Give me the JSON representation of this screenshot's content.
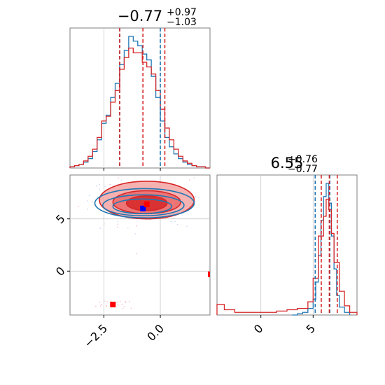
{
  "colors": {
    "blue": "#1f77b4",
    "red": "#d62728",
    "red_fill_light": "#f4a3a3",
    "marker_blue": "#0000ff",
    "marker_red": "#ff0000",
    "grid": "#c8c8c8",
    "axes": "#808080"
  },
  "chart_data": [
    {
      "type": "histogram",
      "panel": "top-left",
      "title": {
        "value": "−0.77",
        "sup": "+0.97",
        "sub": "−1.03"
      },
      "xlim": [
        -4.0,
        2.2
      ],
      "grid": true,
      "reference_line_x": 0.0,
      "series": [
        {
          "name": "",
          "color": "#1f77b4",
          "bin_edges": [
            -4.0,
            -3.8,
            -3.6,
            -3.4,
            -3.2,
            -3.0,
            -2.8,
            -2.6,
            -2.4,
            -2.2,
            -2.0,
            -1.8,
            -1.6,
            -1.4,
            -1.2,
            -1.0,
            -0.8,
            -0.6,
            -0.4,
            -0.2,
            0.0,
            0.2,
            0.4,
            0.6,
            0.8,
            1.0,
            1.2,
            1.4,
            1.6,
            1.8,
            2.0,
            2.2
          ],
          "counts": [
            1,
            2,
            3,
            5,
            8,
            14,
            24,
            38,
            45,
            60,
            72,
            88,
            100,
            112,
            108,
            104,
            97,
            92,
            78,
            60,
            40,
            26,
            18,
            12,
            8,
            5,
            3,
            2,
            1,
            1,
            0
          ],
          "quantile_lines": [
            -1.8,
            0.0
          ]
        },
        {
          "name": "",
          "color": "#d62728",
          "bin_edges": [
            -4.0,
            -3.8,
            -3.6,
            -3.4,
            -3.2,
            -3.0,
            -2.8,
            -2.6,
            -2.4,
            -2.2,
            -2.0,
            -1.8,
            -1.6,
            -1.4,
            -1.2,
            -1.0,
            -0.8,
            -0.6,
            -0.4,
            -0.2,
            0.0,
            0.2,
            0.4,
            0.6,
            0.8,
            1.0,
            1.2,
            1.4,
            1.6,
            1.8,
            2.0,
            2.2
          ],
          "counts": [
            1,
            2,
            3,
            6,
            10,
            16,
            26,
            40,
            44,
            56,
            66,
            84,
            94,
            102,
            98,
            98,
            90,
            86,
            80,
            66,
            50,
            34,
            24,
            16,
            10,
            6,
            4,
            2,
            1,
            1,
            0
          ],
          "quantile_lines": [
            -1.8,
            -0.77,
            0.2
          ]
        }
      ]
    },
    {
      "type": "scatter",
      "panel": "bottom-left",
      "xlim": [
        -4.0,
        2.2
      ],
      "ylim": [
        -4.2,
        9.2
      ],
      "xticks": [
        -2.5,
        0.0
      ],
      "xtick_labels": [
        "−2.5",
        "0.0"
      ],
      "yticks": [
        0,
        5
      ],
      "ytick_labels": [
        "0",
        "5"
      ],
      "grid": true,
      "markers": [
        {
          "color": "#0000ff",
          "x": -0.77,
          "y": 6.0
        },
        {
          "color": "#ff0000",
          "x": -0.6,
          "y": 6.4
        },
        {
          "color": "#ff0000",
          "x": -2.1,
          "y": -3.2
        },
        {
          "color": "#ff0000",
          "x": 2.2,
          "y": -0.3
        }
      ],
      "contours": [
        {
          "color": "#1f77b4",
          "cx": -0.7,
          "cy": 6.5,
          "rx": 2.2,
          "ry": 1.4,
          "fill": false
        },
        {
          "color": "#1f77b4",
          "cx": -0.75,
          "cy": 6.3,
          "rx": 1.8,
          "ry": 1.0,
          "fill": false
        },
        {
          "color": "#1f77b4",
          "cx": -0.8,
          "cy": 6.2,
          "rx": 1.3,
          "ry": 0.7,
          "fill": false
        },
        {
          "color": "#d62728",
          "cx": -0.6,
          "cy": 6.8,
          "rx": 2.1,
          "ry": 1.8,
          "fill": true
        },
        {
          "color": "#d62728",
          "cx": -0.6,
          "cy": 6.6,
          "rx": 1.5,
          "ry": 1.1,
          "fill": true
        },
        {
          "color": "#d62728",
          "cx": -0.6,
          "cy": 6.5,
          "rx": 0.9,
          "ry": 0.7,
          "fill": true
        }
      ]
    },
    {
      "type": "histogram",
      "panel": "bottom-right",
      "title": {
        "value": "6.55",
        "sup": "+0.76",
        "sub": "−0.77"
      },
      "xlim": [
        -4.2,
        9.2
      ],
      "xticks": [
        0,
        5
      ],
      "xtick_labels": [
        "0",
        "5"
      ],
      "grid": true,
      "series": [
        {
          "name": "",
          "color": "#1f77b4",
          "bin_edges": [
            3.0,
            3.5,
            4.0,
            4.5,
            5.0,
            5.25,
            5.5,
            5.75,
            6.0,
            6.25,
            6.5,
            6.75,
            7.0,
            7.25,
            7.5,
            8.0,
            8.5
          ],
          "counts": [
            0,
            1,
            2,
            5,
            12,
            25,
            45,
            72,
            90,
            100,
            85,
            60,
            35,
            15,
            6,
            2
          ],
          "quantile_lines": [
            5.2,
            6.6
          ]
        },
        {
          "name": "",
          "color": "#d62728",
          "bin_edges": [
            -4.2,
            -3.5,
            -2.5,
            -1.5,
            -0.5,
            0.5,
            1.5,
            2.5,
            3.5,
            4.5,
            5.0,
            5.5,
            6.0,
            6.25,
            6.5,
            6.75,
            7.0,
            7.5,
            8.0,
            8.5,
            9.2
          ],
          "counts": [
            8,
            4,
            2,
            2,
            2,
            2,
            3,
            4,
            5,
            10,
            28,
            60,
            75,
            88,
            80,
            62,
            40,
            18,
            7,
            2
          ],
          "quantile_lines": [
            5.78,
            6.55,
            7.31
          ]
        }
      ]
    }
  ]
}
